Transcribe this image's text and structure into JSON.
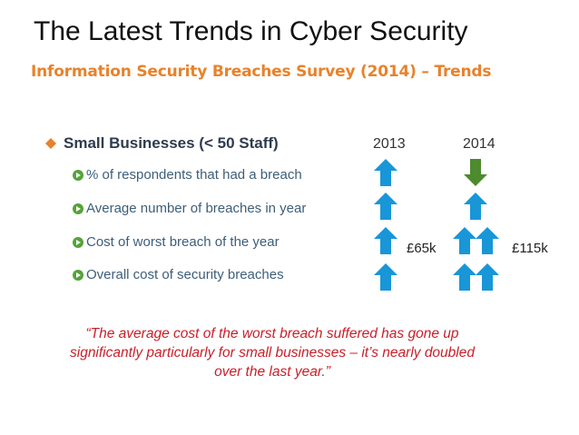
{
  "slide": {
    "title": "The Latest Trends in Cyber Security",
    "subtitle": "Information Security Breaches Survey (2014) – Trends",
    "heading": "Small Businesses (< 50 Staff)",
    "years": [
      "2013",
      "2014"
    ],
    "rows": [
      {
        "label": "% of respondents that had a breach",
        "trend_2013": "up",
        "trend_2014": "down"
      },
      {
        "label": "Average number of breaches in year",
        "trend_2013": "up",
        "trend_2014": "up"
      },
      {
        "label": "Cost of worst breach of the year",
        "trend_2013": "up",
        "trend_2014": "double-up",
        "amount_2013": "£65k",
        "amount_2014": "£115k"
      },
      {
        "label": "Overall cost of security breaches",
        "trend_2013": "up",
        "trend_2014": "double-up"
      }
    ],
    "quote": "“The average cost of the worst breach suffered has gone up significantly particularly for small businesses – it’s nearly doubled over the last year.”"
  },
  "colors": {
    "subtitle": "#e8822a",
    "heading_bullet": "#e8822a",
    "item_bullet": "#55a23b",
    "arrow_up": "#1896d8",
    "arrow_down": "#4e8a2e",
    "quote": "#c8202a"
  },
  "icons": {
    "heading_bullet": "orange-diamond-icon",
    "item_bullet": "green-circle-arrow-icon",
    "up": "blue-up-arrow-icon",
    "down": "green-down-arrow-icon"
  }
}
